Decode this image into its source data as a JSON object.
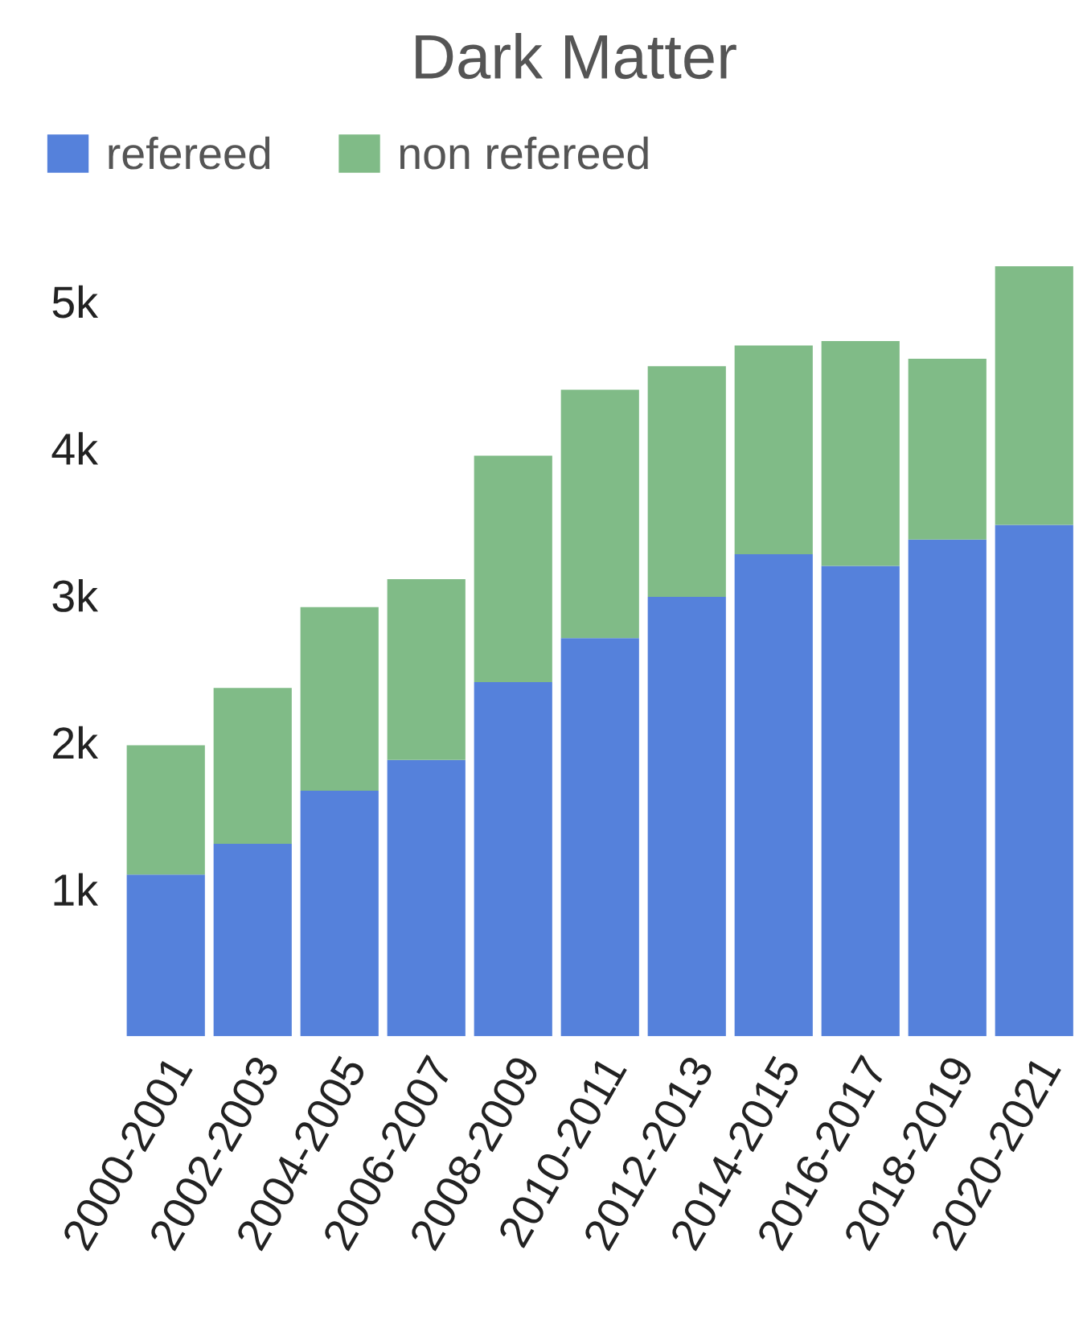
{
  "chart_data": {
    "type": "bar",
    "title": "Dark Matter",
    "stacked": true,
    "legend": "top left",
    "grid": false,
    "categories": [
      "2000-2001",
      "2002-2003",
      "2004-2005",
      "2006-2007",
      "2008-2009",
      "2010-2011",
      "2012-2013",
      "2014-2015",
      "2016-2017",
      "2018-2019",
      "2020-2021"
    ],
    "series": [
      {
        "name": "refereed",
        "color": "#5581db",
        "values": [
          1100,
          1310,
          1670,
          1880,
          2410,
          2710,
          2990,
          3280,
          3200,
          3380,
          3480
        ]
      },
      {
        "name": "non refereed",
        "color": "#80bb87",
        "values": [
          880,
          1060,
          1250,
          1230,
          1540,
          1690,
          1570,
          1420,
          1530,
          1230,
          1760
        ]
      }
    ],
    "ylim": [
      0,
      5300
    ],
    "yticks": [
      {
        "value": 1000,
        "label": "1k"
      },
      {
        "value": 2000,
        "label": "2k"
      },
      {
        "value": 3000,
        "label": "3k"
      },
      {
        "value": 4000,
        "label": "4k"
      },
      {
        "value": 5000,
        "label": "5k"
      }
    ]
  }
}
